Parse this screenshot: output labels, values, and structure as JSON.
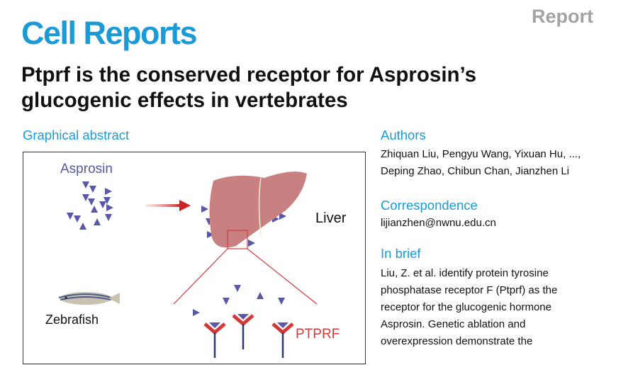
{
  "header": {
    "journal": "Cell Reports",
    "article_type": "Report"
  },
  "title": {
    "line1": "Ptprf is the conserved receptor for Asprosin’s",
    "line2": "glucogenic effects in vertebrates"
  },
  "graphical_abstract": {
    "heading": "Graphical abstract",
    "labels": {
      "hormone": "Asprosin",
      "organ": "Liver",
      "organism": "Zebrafish",
      "receptor": "PTPRF"
    }
  },
  "authors": {
    "heading": "Authors",
    "line1": "Zhiquan Liu, Pengyu Wang, Yixuan Hu, ...,",
    "line2": "Deping Zhao, Chibun Chan, Jianzhen Li"
  },
  "correspondence": {
    "heading": "Correspondence",
    "email": "lijianzhen@nwnu.edu.cn"
  },
  "in_brief": {
    "heading": "In brief",
    "lines": [
      "Liu, Z. et al. identify protein tyrosine",
      "phosphatase receptor F (Ptprf) as the",
      "receptor for the glucogenic hormone",
      "Asprosin. Genetic ablation and",
      "overexpression demonstrate the"
    ]
  },
  "colors": {
    "accent": "#1a9ad6",
    "asprosin": "#5a56a8",
    "receptor": "#d23a3a",
    "liver": "#c98080"
  }
}
